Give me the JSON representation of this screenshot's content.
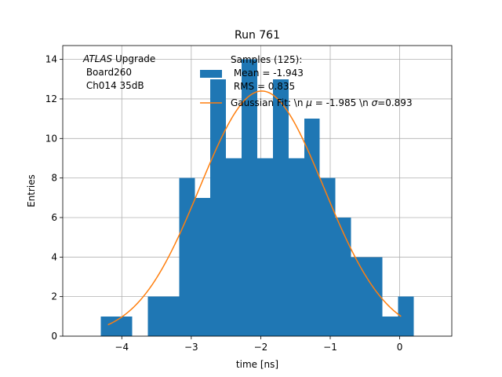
{
  "chart_data": {
    "type": "bar",
    "title": "Run 761",
    "xlabel": "time [ns]",
    "ylabel": "Entries",
    "xlim": [
      -4.85,
      0.75
    ],
    "ylim": [
      0,
      14.7
    ],
    "grid": true,
    "x_ticks": [
      -4,
      -3,
      -2,
      -1,
      0
    ],
    "x_tick_labels": [
      "−4",
      "−3",
      "−2",
      "−1",
      "0"
    ],
    "y_ticks": [
      0,
      2,
      4,
      6,
      8,
      10,
      12,
      14
    ],
    "y_tick_labels": [
      "0",
      "2",
      "4",
      "6",
      "8",
      "10",
      "12",
      "14"
    ],
    "histogram": {
      "color": "#1f77b4",
      "bin_edges": [
        -4.3,
        -4.075,
        -3.85,
        -3.625,
        -3.4,
        -3.175,
        -2.95,
        -2.725,
        -2.5,
        -2.275,
        -2.05,
        -1.825,
        -1.6,
        -1.375,
        -1.15,
        -0.925,
        -0.7,
        -0.475,
        -0.25,
        -0.025,
        0.2
      ],
      "counts": [
        1,
        1,
        0,
        2,
        2,
        8,
        7,
        13,
        9,
        14,
        9,
        13,
        9,
        11,
        8,
        6,
        4,
        4,
        1,
        2
      ]
    },
    "fit_curve": {
      "name": "Gaussian Fit",
      "color": "#ff7f0e",
      "mu": -1.985,
      "sigma": 0.893,
      "amplitude": 12.4,
      "x_range": [
        -4.2,
        0.02
      ]
    },
    "legend": {
      "placement": "top-center",
      "samples_lines": [
        "Samples (125):",
        " Mean = -1.943",
        " RMS = 0.835"
      ],
      "fit_prefix": "Gaussian Fit: \\n ",
      "fit_mu_sym": "μ",
      "fit_mid": " = -1.985 \\n ",
      "fit_sigma_sym": "σ",
      "fit_suffix": "=0.893"
    },
    "annotation": {
      "atlas_word": "ATLAS",
      "atlas_rest": " Upgrade",
      "line2": " Board260",
      "line3": " Ch014 35dB"
    }
  }
}
